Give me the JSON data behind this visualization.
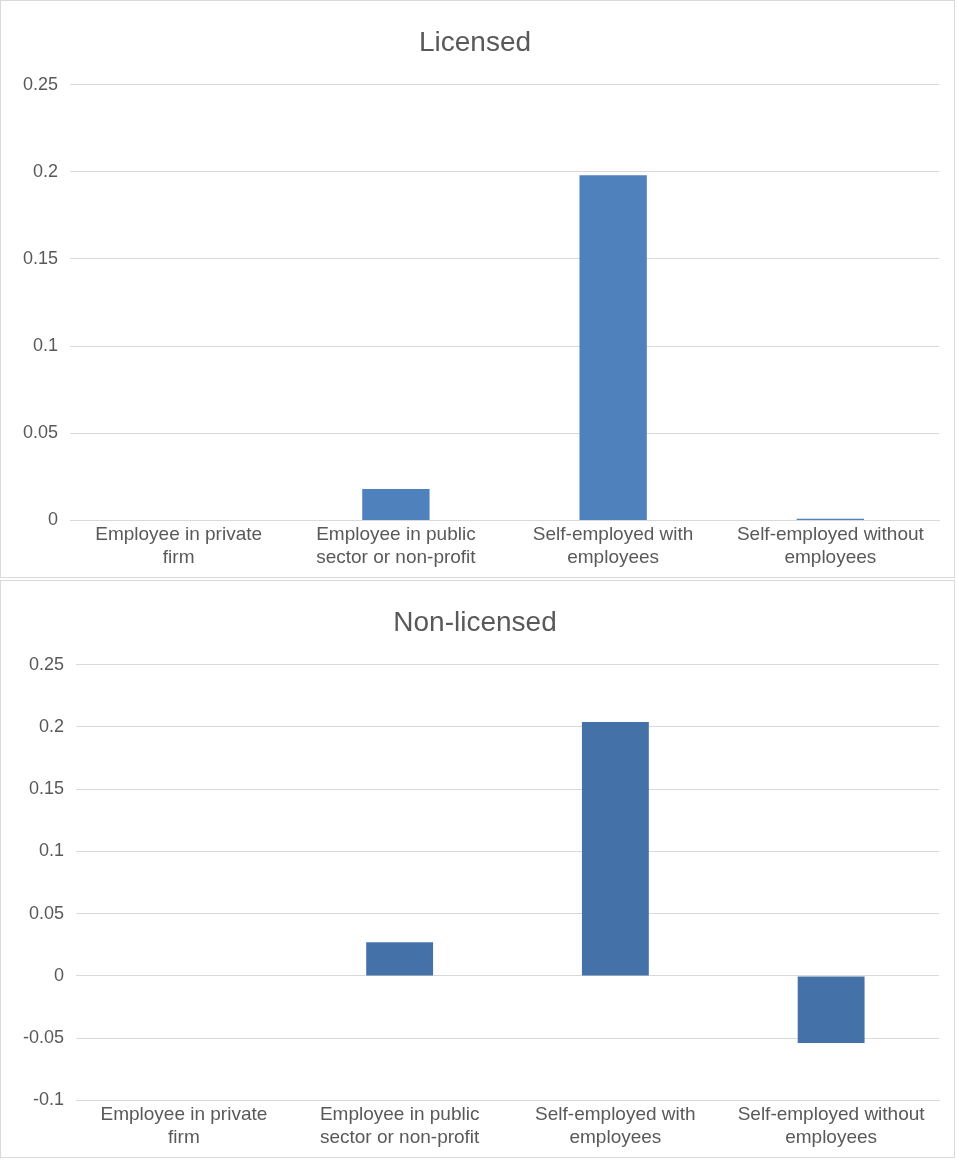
{
  "chart_data": [
    {
      "type": "bar",
      "title": "Licensed",
      "categories": [
        "Employee in private firm",
        "Employee in public sector or non-profit",
        "Self-employed with employees",
        "Self-employed without employees"
      ],
      "values": [
        0,
        0.018,
        0.198,
        0.001
      ],
      "color": "#4f81bd",
      "ylim": [
        0,
        0.25
      ],
      "yticks": [
        0,
        0.05,
        0.1,
        0.15,
        0.2,
        0.25
      ],
      "grid": "y",
      "legend": false
    },
    {
      "type": "bar",
      "title": "Non-licensed",
      "categories": [
        "Employee in private firm",
        "Employee in public sector or non-profit",
        "Self-employed with employees",
        "Self-employed without employees"
      ],
      "values": [
        0,
        0.027,
        0.204,
        -0.054
      ],
      "color": "#4472a8",
      "ylim": [
        -0.1,
        0.25
      ],
      "yticks": [
        -0.1,
        -0.05,
        0,
        0.05,
        0.1,
        0.15,
        0.2,
        0.25
      ],
      "grid": "y",
      "legend": false
    }
  ]
}
